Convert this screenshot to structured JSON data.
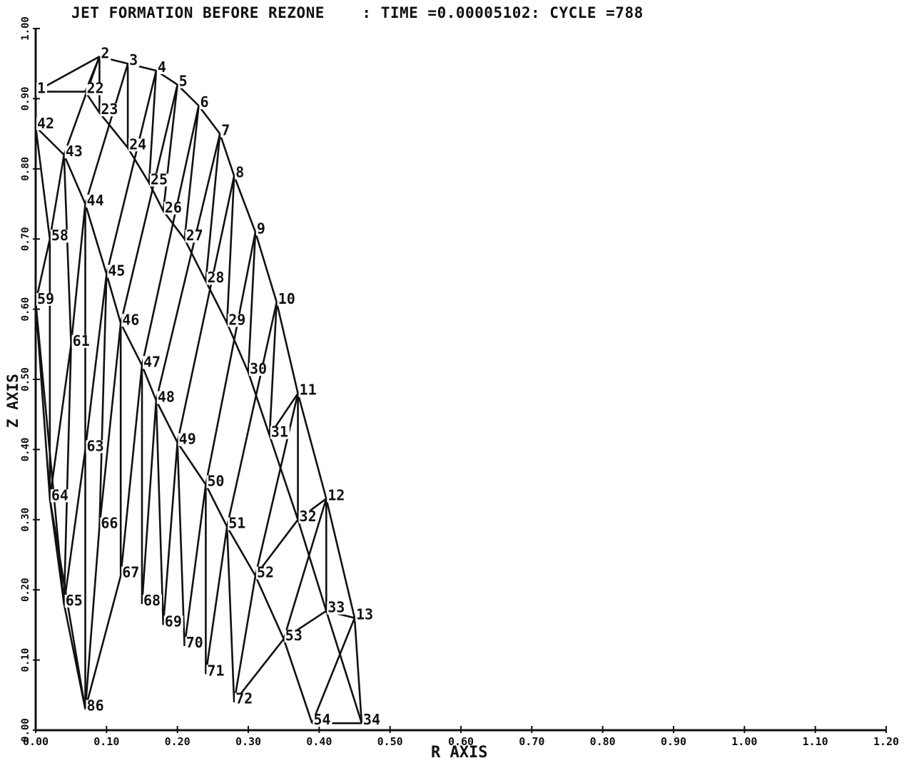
{
  "title": "JET FORMATION BEFORE REZONE    : TIME =0.00005102: CYCLE =788",
  "x_axis_label": "R AXIS",
  "y_axis_label": "Z AXIS",
  "x_ticks": [
    "0.00",
    "0.10",
    "0.20",
    "0.30",
    "0.40",
    "0.50",
    "0.60",
    "0.70",
    "0.80",
    "0.90",
    "1.00",
    "1.10",
    "1.20"
  ],
  "y_ticks": [
    "0.00",
    "0.10",
    "0.20",
    "0.30",
    "0.40",
    "0.50",
    "0.60",
    "0.70",
    "0.80",
    "0.90",
    "1.00"
  ],
  "chart_data": {
    "type": "mesh",
    "xlim": [
      0,
      1.2
    ],
    "ylim": [
      0,
      1.0
    ],
    "nodes": [
      {
        "id": "1",
        "r": 0.0,
        "z": 0.91
      },
      {
        "id": "2",
        "r": 0.09,
        "z": 0.96
      },
      {
        "id": "3",
        "r": 0.13,
        "z": 0.95
      },
      {
        "id": "4",
        "r": 0.17,
        "z": 0.94
      },
      {
        "id": "5",
        "r": 0.2,
        "z": 0.92
      },
      {
        "id": "6",
        "r": 0.23,
        "z": 0.89
      },
      {
        "id": "7",
        "r": 0.26,
        "z": 0.85
      },
      {
        "id": "8",
        "r": 0.28,
        "z": 0.79
      },
      {
        "id": "9",
        "r": 0.31,
        "z": 0.71
      },
      {
        "id": "10",
        "r": 0.34,
        "z": 0.61
      },
      {
        "id": "11",
        "r": 0.37,
        "z": 0.48
      },
      {
        "id": "12",
        "r": 0.41,
        "z": 0.33
      },
      {
        "id": "13",
        "r": 0.45,
        "z": 0.16
      },
      {
        "id": "22",
        "r": 0.07,
        "z": 0.91
      },
      {
        "id": "23",
        "r": 0.09,
        "z": 0.88
      },
      {
        "id": "24",
        "r": 0.13,
        "z": 0.83
      },
      {
        "id": "25",
        "r": 0.16,
        "z": 0.78
      },
      {
        "id": "26",
        "r": 0.18,
        "z": 0.74
      },
      {
        "id": "27",
        "r": 0.21,
        "z": 0.7
      },
      {
        "id": "28",
        "r": 0.24,
        "z": 0.64
      },
      {
        "id": "29",
        "r": 0.27,
        "z": 0.58
      },
      {
        "id": "30",
        "r": 0.3,
        "z": 0.51
      },
      {
        "id": "31",
        "r": 0.33,
        "z": 0.42
      },
      {
        "id": "32",
        "r": 0.37,
        "z": 0.3
      },
      {
        "id": "33",
        "r": 0.41,
        "z": 0.17
      },
      {
        "id": "34",
        "r": 0.46,
        "z": 0.01
      },
      {
        "id": "42",
        "r": 0.0,
        "z": 0.86
      },
      {
        "id": "43",
        "r": 0.04,
        "z": 0.82
      },
      {
        "id": "44",
        "r": 0.07,
        "z": 0.75
      },
      {
        "id": "45",
        "r": 0.1,
        "z": 0.65
      },
      {
        "id": "46",
        "r": 0.12,
        "z": 0.58
      },
      {
        "id": "47",
        "r": 0.15,
        "z": 0.52
      },
      {
        "id": "48",
        "r": 0.17,
        "z": 0.47
      },
      {
        "id": "49",
        "r": 0.2,
        "z": 0.41
      },
      {
        "id": "50",
        "r": 0.24,
        "z": 0.35
      },
      {
        "id": "51",
        "r": 0.27,
        "z": 0.29
      },
      {
        "id": "52",
        "r": 0.31,
        "z": 0.22
      },
      {
        "id": "53",
        "r": 0.35,
        "z": 0.13
      },
      {
        "id": "54",
        "r": 0.39,
        "z": 0.01
      },
      {
        "id": "58",
        "r": 0.02,
        "z": 0.7
      },
      {
        "id": "59",
        "r": 0.0,
        "z": 0.61
      },
      {
        "id": "61",
        "r": 0.05,
        "z": 0.55
      },
      {
        "id": "63",
        "r": 0.07,
        "z": 0.4
      },
      {
        "id": "64",
        "r": 0.02,
        "z": 0.33
      },
      {
        "id": "65",
        "r": 0.04,
        "z": 0.18
      },
      {
        "id": "66",
        "r": 0.09,
        "z": 0.29
      },
      {
        "id": "67",
        "r": 0.12,
        "z": 0.22
      },
      {
        "id": "68",
        "r": 0.15,
        "z": 0.18
      },
      {
        "id": "69",
        "r": 0.18,
        "z": 0.15
      },
      {
        "id": "70",
        "r": 0.21,
        "z": 0.12
      },
      {
        "id": "71",
        "r": 0.24,
        "z": 0.08
      },
      {
        "id": "72",
        "r": 0.28,
        "z": 0.04
      },
      {
        "id": "86",
        "r": 0.07,
        "z": 0.03
      }
    ],
    "edges": [
      [
        "1",
        "2"
      ],
      [
        "2",
        "3"
      ],
      [
        "3",
        "4"
      ],
      [
        "4",
        "5"
      ],
      [
        "5",
        "6"
      ],
      [
        "6",
        "7"
      ],
      [
        "7",
        "8"
      ],
      [
        "8",
        "9"
      ],
      [
        "9",
        "10"
      ],
      [
        "10",
        "11"
      ],
      [
        "11",
        "12"
      ],
      [
        "12",
        "13"
      ],
      [
        "1",
        "22"
      ],
      [
        "22",
        "23"
      ],
      [
        "1",
        "42"
      ],
      [
        "42",
        "43"
      ],
      [
        "43",
        "44"
      ],
      [
        "44",
        "45"
      ],
      [
        "45",
        "46"
      ],
      [
        "46",
        "47"
      ],
      [
        "47",
        "48"
      ],
      [
        "48",
        "49"
      ],
      [
        "49",
        "50"
      ],
      [
        "50",
        "51"
      ],
      [
        "51",
        "52"
      ],
      [
        "52",
        "53"
      ],
      [
        "53",
        "54"
      ],
      [
        "54",
        "34"
      ],
      [
        "2",
        "22"
      ],
      [
        "2",
        "23"
      ],
      [
        "2",
        "43"
      ],
      [
        "23",
        "24"
      ],
      [
        "3",
        "24"
      ],
      [
        "3",
        "44"
      ],
      [
        "24",
        "25"
      ],
      [
        "4",
        "25"
      ],
      [
        "4",
        "45"
      ],
      [
        "25",
        "26"
      ],
      [
        "5",
        "26"
      ],
      [
        "5",
        "46"
      ],
      [
        "26",
        "27"
      ],
      [
        "6",
        "27"
      ],
      [
        "6",
        "47"
      ],
      [
        "27",
        "28"
      ],
      [
        "7",
        "28"
      ],
      [
        "7",
        "48"
      ],
      [
        "28",
        "29"
      ],
      [
        "8",
        "29"
      ],
      [
        "8",
        "49"
      ],
      [
        "29",
        "30"
      ],
      [
        "9",
        "30"
      ],
      [
        "9",
        "50"
      ],
      [
        "30",
        "31"
      ],
      [
        "10",
        "31"
      ],
      [
        "10",
        "51"
      ],
      [
        "31",
        "32"
      ],
      [
        "11",
        "32"
      ],
      [
        "11",
        "52"
      ],
      [
        "32",
        "33"
      ],
      [
        "12",
        "33"
      ],
      [
        "12",
        "53"
      ],
      [
        "33",
        "34"
      ],
      [
        "13",
        "34"
      ],
      [
        "13",
        "54"
      ],
      [
        "13",
        "33"
      ],
      [
        "12",
        "32"
      ],
      [
        "11",
        "31"
      ],
      [
        "53",
        "33"
      ],
      [
        "52",
        "32"
      ],
      [
        "42",
        "58"
      ],
      [
        "42",
        "59"
      ],
      [
        "43",
        "58"
      ],
      [
        "43",
        "61"
      ],
      [
        "44",
        "61"
      ],
      [
        "44",
        "63"
      ],
      [
        "45",
        "63"
      ],
      [
        "45",
        "66"
      ],
      [
        "46",
        "66"
      ],
      [
        "46",
        "67"
      ],
      [
        "47",
        "67"
      ],
      [
        "47",
        "68"
      ],
      [
        "48",
        "68"
      ],
      [
        "48",
        "69"
      ],
      [
        "49",
        "69"
      ],
      [
        "49",
        "70"
      ],
      [
        "50",
        "70"
      ],
      [
        "50",
        "71"
      ],
      [
        "51",
        "71"
      ],
      [
        "51",
        "72"
      ],
      [
        "52",
        "72"
      ],
      [
        "53",
        "72"
      ],
      [
        "58",
        "59"
      ],
      [
        "59",
        "64"
      ],
      [
        "58",
        "64"
      ],
      [
        "61",
        "64"
      ],
      [
        "61",
        "65"
      ],
      [
        "63",
        "65"
      ],
      [
        "63",
        "86"
      ],
      [
        "64",
        "65"
      ],
      [
        "65",
        "86"
      ],
      [
        "66",
        "86"
      ],
      [
        "67",
        "86"
      ],
      [
        "59",
        "65"
      ],
      [
        "64",
        "86"
      ]
    ]
  }
}
